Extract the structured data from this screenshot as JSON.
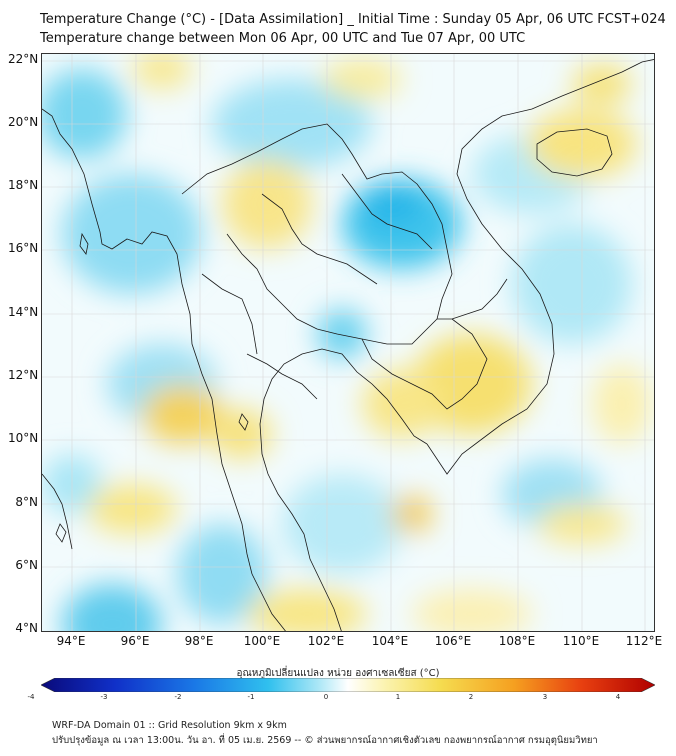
{
  "title_line1": "Temperature Change (°C) - [Data Assimilation] _ Initial Time : Sunday 05 Apr, 06 UTC FCST+024",
  "title_line2": "Temperature change between Mon 06 Apr, 00 UTC and Tue 07 Apr, 00 UTC",
  "map": {
    "lat_labels": [
      "22°N",
      "20°N",
      "18°N",
      "16°N",
      "14°N",
      "12°N",
      "10°N",
      "8°N",
      "6°N",
      "4°N"
    ],
    "lon_labels": [
      "94°E",
      "96°E",
      "98°E",
      "100°E",
      "102°E",
      "104°E",
      "106°E",
      "108°E",
      "110°E",
      "112°E"
    ],
    "lat_range": [
      4,
      22.2
    ],
    "lon_range": [
      93,
      112.3
    ],
    "colors": {
      "frame": "#333333",
      "border_line": "#1a1a1a",
      "grid": "#d8d8d8"
    }
  },
  "colorbar": {
    "title": "อุณหภูมิเปลี่ยนแปลง หน่วย องศาเซลเซียส (°C)",
    "tick_labels": [
      "-4",
      "-3",
      "-2",
      "-1",
      "0",
      "1",
      "2",
      "3",
      "4"
    ],
    "range": [
      -4,
      4
    ],
    "colors": [
      "#0a0a7a",
      "#1030c8",
      "#1a78e6",
      "#30c0ee",
      "#a8e6f6",
      "#ffffff",
      "#fbf3b0",
      "#f5dc50",
      "#f5a020",
      "#e84010",
      "#b00000"
    ]
  },
  "footer_line1": "WRF-DA Domain 01 :: Grid Resolution 9km x 9km",
  "footer_line2": "ปรับปรุงข้อมูล ณ เวลา 13:00น. วัน อา. ที่ 05 เม.ย. 2569 -- © ส่วนพยากรณ์อากาศเชิงตัวเลข กองพยากรณ์อากาศ กรมอุตุนิยมวิทยา"
}
